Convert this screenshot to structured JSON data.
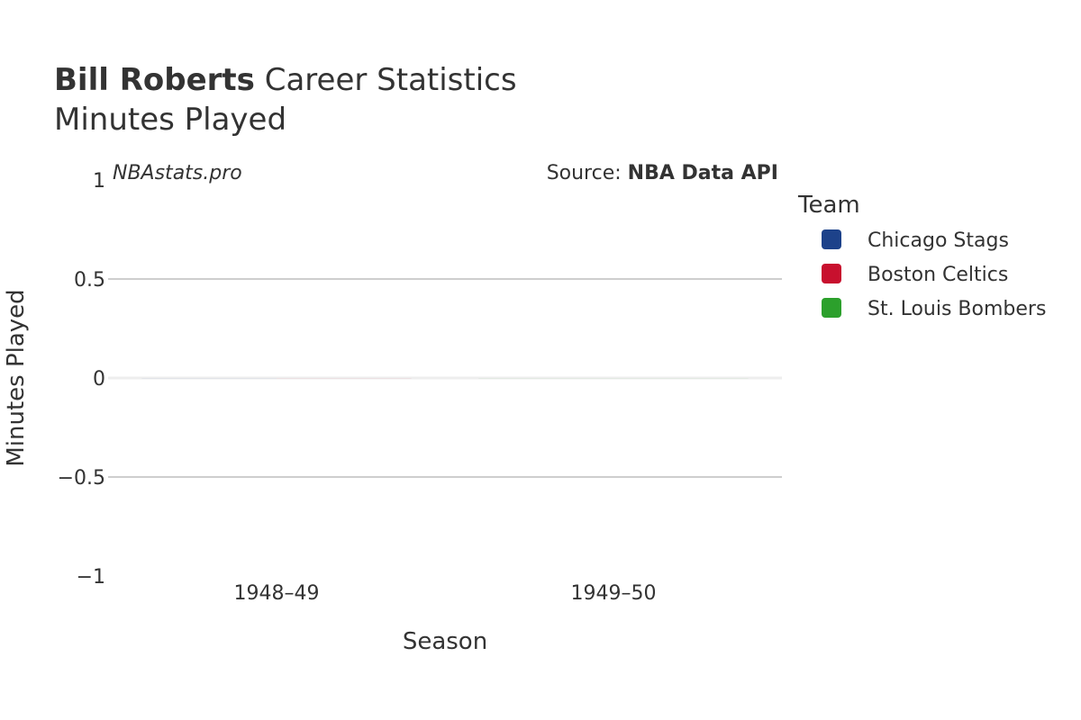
{
  "title": {
    "bold": "Bill Roberts",
    "rest": " Career Statistics"
  },
  "subtitle": "Minutes Played",
  "watermark": "NBAstats.pro",
  "source": {
    "prefix": "Source: ",
    "name": "NBA Data API"
  },
  "legend": {
    "title": "Team",
    "items": [
      {
        "label": "Chicago Stags",
        "color": "#1d428a"
      },
      {
        "label": "Boston Celtics",
        "color": "#c8102e"
      },
      {
        "label": "St. Louis Bombers",
        "color": "#2ca02c"
      }
    ]
  },
  "chart_data": {
    "type": "bar",
    "categories": [
      "1948–49",
      "1949–50"
    ],
    "series": [
      {
        "name": "Chicago Stags",
        "values": [
          0,
          null
        ]
      },
      {
        "name": "Boston Celtics",
        "values": [
          0,
          null
        ]
      },
      {
        "name": "St. Louis Bombers",
        "values": [
          null,
          0
        ]
      }
    ],
    "xlabel": "Season",
    "ylabel": "Minutes Played",
    "ylim": [
      -1,
      1
    ],
    "yticks": [
      1,
      0.5,
      0,
      -0.5,
      -1
    ],
    "ytick_labels": [
      "1",
      "0.5",
      "0",
      "−0.5",
      "−1"
    ],
    "grid": true,
    "legend_position": "right"
  }
}
